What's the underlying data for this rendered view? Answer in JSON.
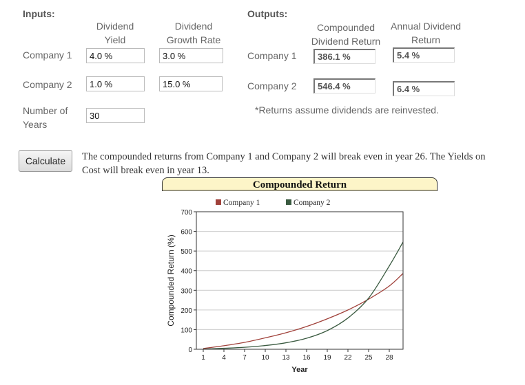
{
  "inputs": {
    "heading": "Inputs:",
    "col_yield": [
      "Dividend",
      "Yield"
    ],
    "col_growth": [
      "Dividend",
      "Growth Rate"
    ],
    "company1": {
      "label": "Company 1",
      "yield": "4.0 %",
      "growth": "3.0 %"
    },
    "company2": {
      "label": "Company 2",
      "yield": "1.0 %",
      "growth": "15.0 %"
    },
    "years": {
      "label": [
        "Number of",
        "Years"
      ],
      "value": "30"
    }
  },
  "outputs": {
    "heading": "Outputs:",
    "col_compounded": [
      "Compounded",
      "Dividend Return"
    ],
    "col_annual": [
      "Annual Dividend",
      "Return"
    ],
    "company1": {
      "label": "Company 1",
      "compounded": "386.1 %",
      "annual": "5.4 %"
    },
    "company2": {
      "label": "Company 2",
      "compounded": "546.4 %",
      "annual": "6.4 %"
    },
    "note": "*Returns assume dividends are reinvested."
  },
  "calculate_label": "Calculate",
  "result_message": [
    "The compounded returns from Company 1 and Company 2 will break even in year 26. The Yields on",
    "Cost will break even in year 13."
  ],
  "colors": {
    "company1": "#a0413a",
    "company2": "#3a5a40",
    "title_bg": "#fdf5c8",
    "grid": "#cccccc"
  },
  "chart_data": {
    "type": "line",
    "title": "Compounded Return",
    "xlabel": "Year",
    "ylabel": "Compounded Return (%)",
    "xlim": [
      0,
      30
    ],
    "ylim": [
      0,
      700
    ],
    "x_ticks": [
      1,
      4,
      7,
      10,
      13,
      16,
      19,
      22,
      25,
      28
    ],
    "y_ticks": [
      0,
      100,
      200,
      300,
      400,
      500,
      600,
      700
    ],
    "grid": true,
    "legend": "top",
    "x": [
      1,
      4,
      7,
      10,
      13,
      16,
      19,
      22,
      25,
      28,
      30
    ],
    "series": [
      {
        "name": "Company 1",
        "values": [
          4,
          18,
          35,
          58,
          84,
          116,
          155,
          200,
          255,
          322,
          386
        ]
      },
      {
        "name": "Company 2",
        "values": [
          1,
          5,
          10,
          19,
          33,
          56,
          95,
          159,
          260,
          424,
          546
        ]
      }
    ]
  }
}
